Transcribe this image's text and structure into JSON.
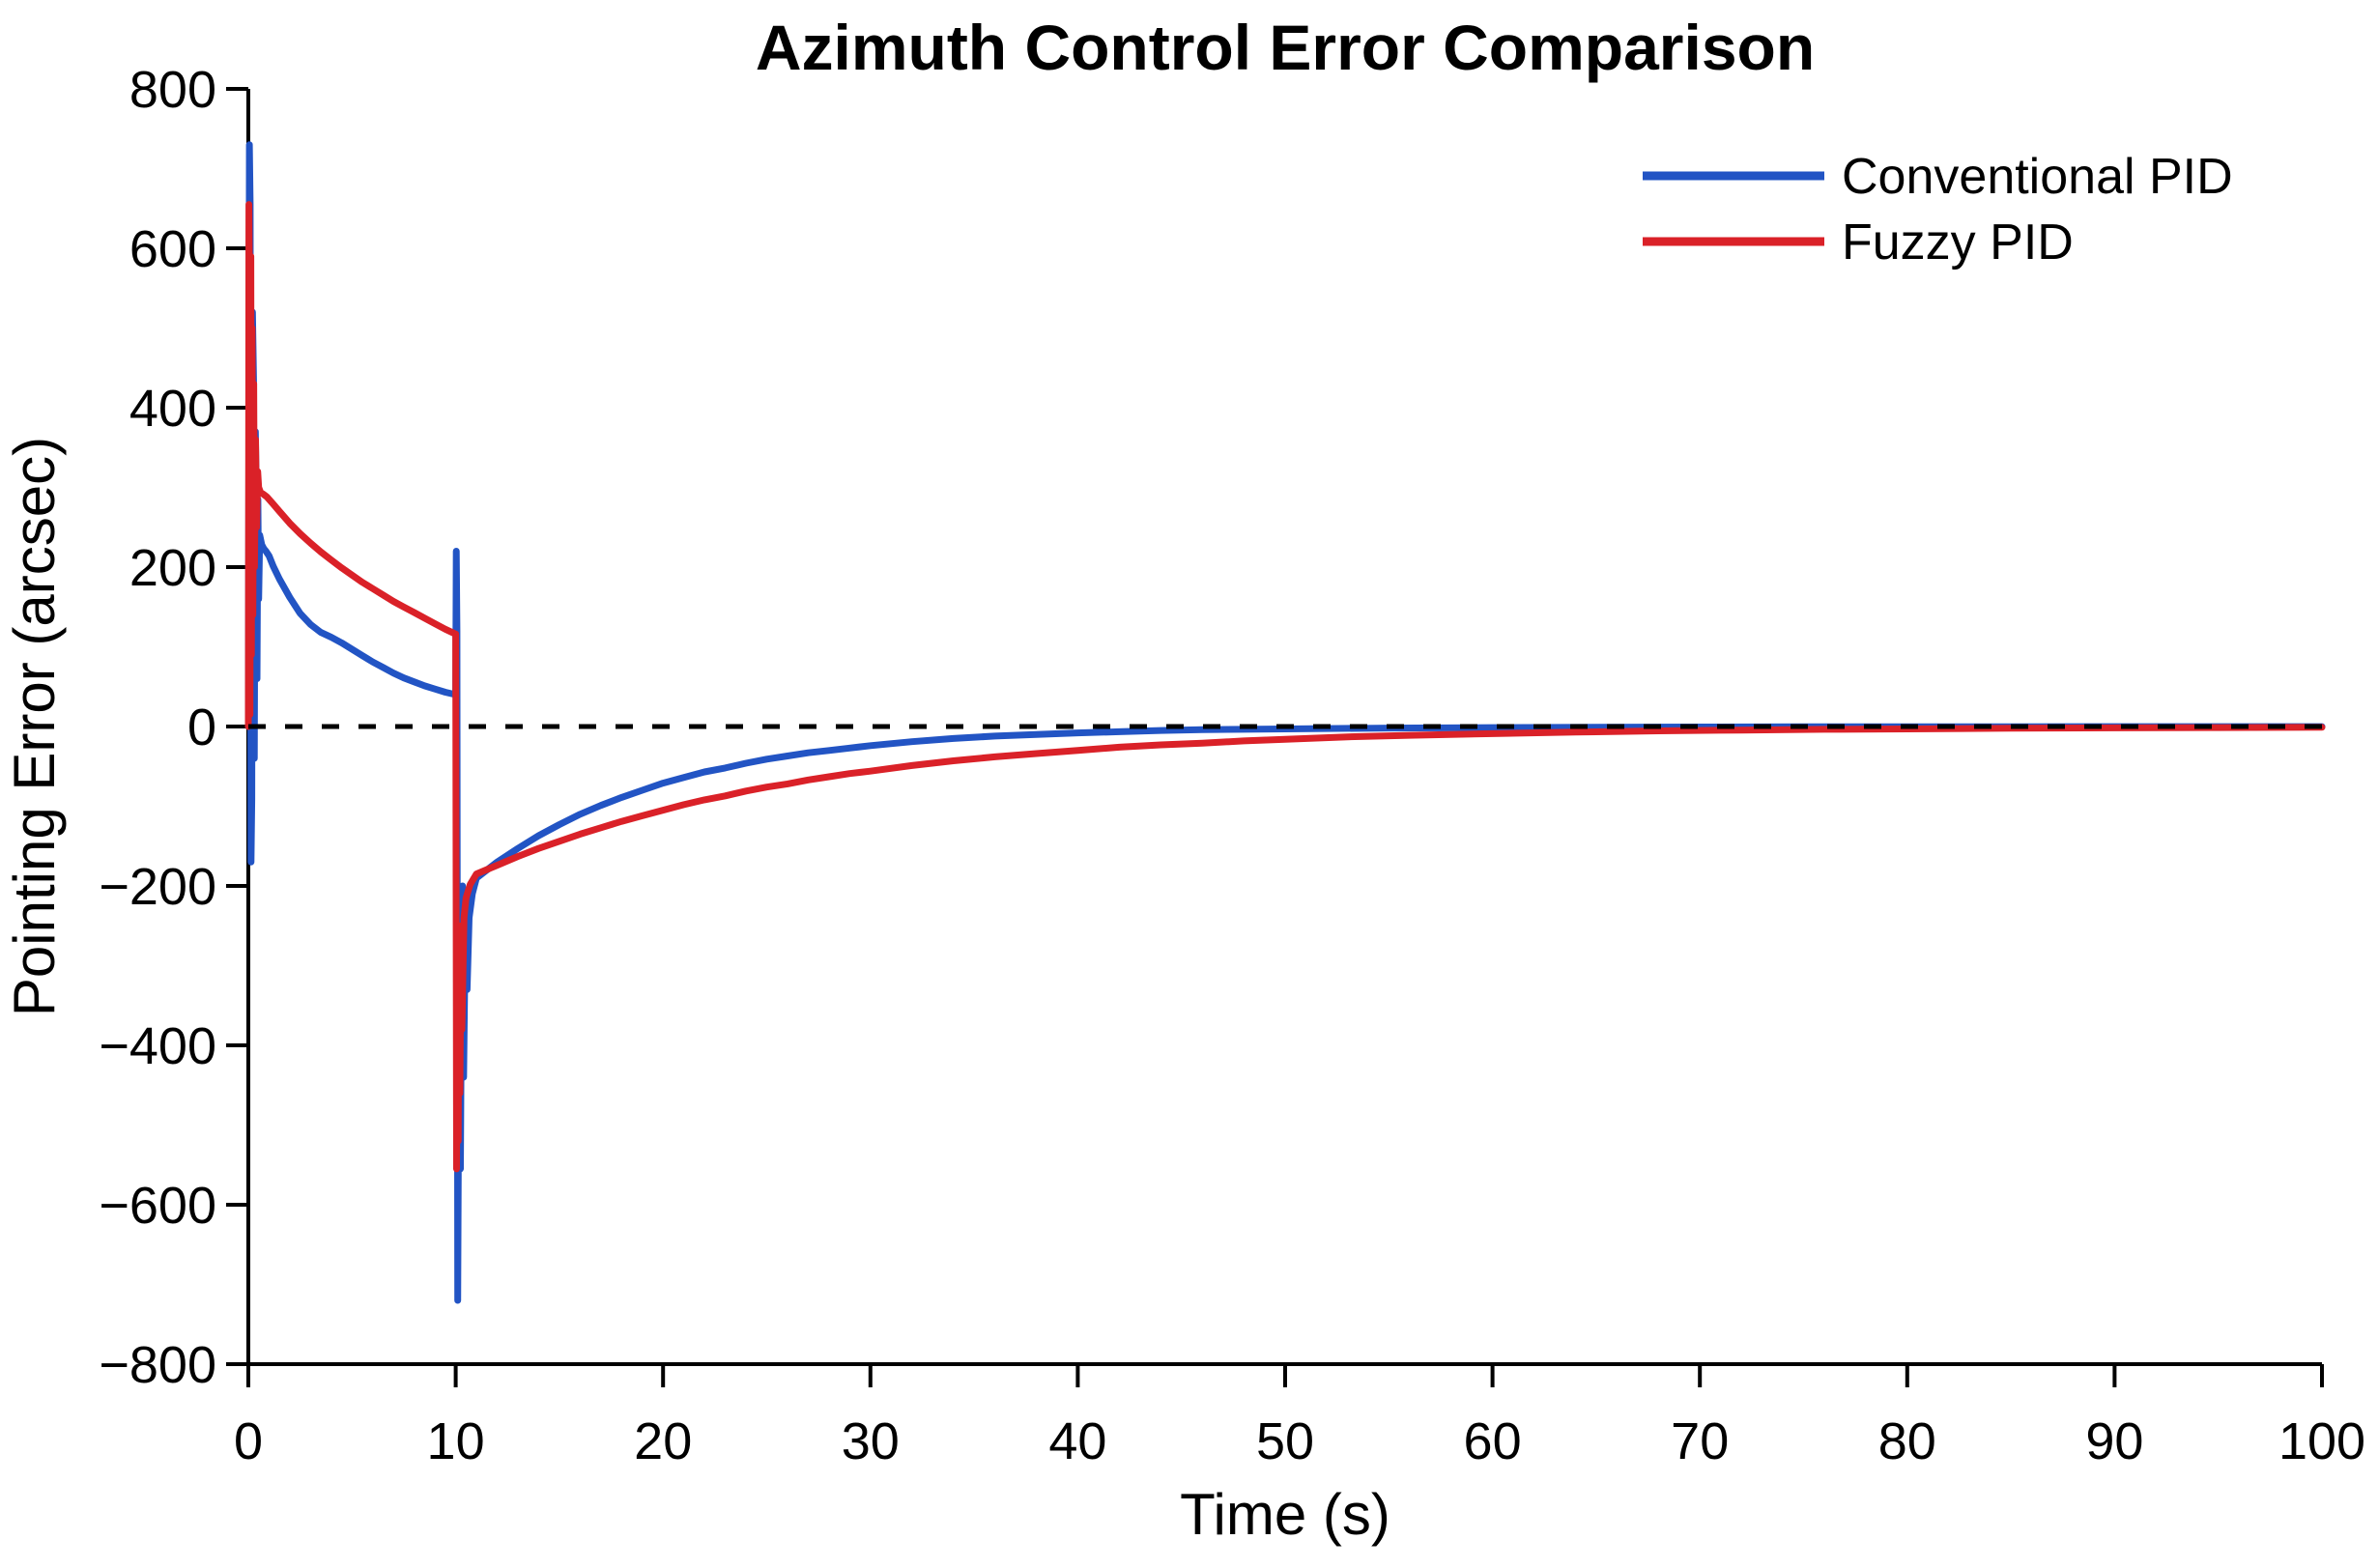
{
  "title": "Azimuth Control Error Comparison",
  "axes": {
    "xlabel": "Time (s)",
    "ylabel": "Pointing Error (arcsec)",
    "x_tick_labels": [
      "0",
      "10",
      "20",
      "30",
      "40",
      "50",
      "60",
      "70",
      "80",
      "90",
      "100"
    ],
    "y_tick_labels": [
      "800",
      "600",
      "400",
      "200",
      "0",
      "−200",
      "−400",
      "−600",
      "−800"
    ]
  },
  "legend": {
    "items": [
      {
        "label": "Conventional PID",
        "color": "#2254c4"
      },
      {
        "label": "Fuzzy PID",
        "color": "#da2128"
      }
    ]
  },
  "colors": {
    "conventional_pid": "#2254c4",
    "fuzzy_pid": "#da2128",
    "axis": "#000000",
    "zero_line": "#000000",
    "background": "#ffffff"
  },
  "chart_data": {
    "type": "line",
    "title": "Azimuth Control Error Comparison",
    "xlabel": "Time (s)",
    "ylabel": "Pointing Error (arcsec)",
    "xlim": [
      0,
      100
    ],
    "ylim": [
      -800,
      800
    ],
    "x_ticks": [
      0,
      10,
      20,
      30,
      40,
      50,
      60,
      70,
      80,
      90,
      100
    ],
    "y_ticks": [
      800,
      600,
      400,
      200,
      0,
      -200,
      -400,
      -600,
      -800
    ],
    "grid": false,
    "legend_position": "upper right",
    "zero_reference_line": {
      "y": 0,
      "style": "dashed",
      "color": "#000000"
    },
    "annotations": {
      "step_times_s": [
        0,
        10
      ],
      "conventional_pid_peak_overshoot_arcsec": 730,
      "conventional_pid_min_arcsec": -720,
      "fuzzy_pid_peak_overshoot_arcsec": 655,
      "fuzzy_pid_min_arcsec": -555
    },
    "series": [
      {
        "name": "Conventional PID",
        "color": "#2254c4",
        "points": [
          [
            0,
            0
          ],
          [
            0.05,
            730
          ],
          [
            0.09,
            655
          ],
          [
            0.13,
            -170
          ],
          [
            0.17,
            -90
          ],
          [
            0.2,
            520
          ],
          [
            0.25,
            435
          ],
          [
            0.29,
            -40
          ],
          [
            0.34,
            370
          ],
          [
            0.38,
            300
          ],
          [
            0.42,
            60
          ],
          [
            0.46,
            285
          ],
          [
            0.5,
            160
          ],
          [
            0.55,
            240
          ],
          [
            0.65,
            228
          ],
          [
            0.75,
            223
          ],
          [
            0.85,
            220
          ],
          [
            1,
            214
          ],
          [
            1.2,
            201
          ],
          [
            1.5,
            185
          ],
          [
            2,
            162
          ],
          [
            2.5,
            142
          ],
          [
            3,
            128
          ],
          [
            3.5,
            118
          ],
          [
            4,
            112
          ],
          [
            4.5,
            105
          ],
          [
            5,
            97
          ],
          [
            5.5,
            89
          ],
          [
            6,
            81
          ],
          [
            6.5,
            74
          ],
          [
            7,
            67
          ],
          [
            7.5,
            61
          ],
          [
            8,
            56
          ],
          [
            8.5,
            51
          ],
          [
            9,
            47
          ],
          [
            9.5,
            43
          ],
          [
            10,
            40
          ],
          [
            10.03,
            220
          ],
          [
            10.06,
            120
          ],
          [
            10.1,
            -720
          ],
          [
            10.14,
            -470
          ],
          [
            10.18,
            -240
          ],
          [
            10.23,
            -555
          ],
          [
            10.28,
            -320
          ],
          [
            10.33,
            -200
          ],
          [
            10.38,
            -440
          ],
          [
            10.45,
            -280
          ],
          [
            10.55,
            -330
          ],
          [
            10.65,
            -240
          ],
          [
            10.8,
            -210
          ],
          [
            11,
            -190
          ],
          [
            12,
            -170
          ],
          [
            13,
            -153
          ],
          [
            14,
            -137
          ],
          [
            15,
            -123
          ],
          [
            16,
            -110
          ],
          [
            17,
            -99
          ],
          [
            18,
            -89
          ],
          [
            19,
            -80
          ],
          [
            20,
            -71
          ],
          [
            21,
            -64
          ],
          [
            22,
            -57
          ],
          [
            23,
            -52
          ],
          [
            24,
            -46
          ],
          [
            25,
            -41
          ],
          [
            26,
            -37
          ],
          [
            27,
            -33
          ],
          [
            28,
            -30
          ],
          [
            29,
            -27
          ],
          [
            30,
            -24
          ],
          [
            32,
            -19
          ],
          [
            34,
            -15
          ],
          [
            36,
            -12
          ],
          [
            38,
            -10
          ],
          [
            40,
            -8
          ],
          [
            42,
            -6.5
          ],
          [
            44,
            -5
          ],
          [
            46,
            -4
          ],
          [
            48,
            -3.5
          ],
          [
            50,
            -3
          ],
          [
            55,
            -2
          ],
          [
            60,
            -1.3
          ],
          [
            65,
            -0.9
          ],
          [
            70,
            -0.6
          ],
          [
            75,
            -0.4
          ],
          [
            80,
            -0.3
          ],
          [
            85,
            -0.2
          ],
          [
            90,
            -0.1
          ],
          [
            95,
            -0.1
          ],
          [
            100,
            -0.1
          ]
        ]
      },
      {
        "name": "Fuzzy PID",
        "color": "#da2128",
        "points": [
          [
            0,
            0
          ],
          [
            0.03,
            655
          ],
          [
            0.06,
            540
          ],
          [
            0.08,
            15
          ],
          [
            0.12,
            590
          ],
          [
            0.15,
            90
          ],
          [
            0.18,
            500
          ],
          [
            0.22,
            140
          ],
          [
            0.26,
            430
          ],
          [
            0.3,
            200
          ],
          [
            0.35,
            360
          ],
          [
            0.4,
            250
          ],
          [
            0.45,
            320
          ],
          [
            0.5,
            300
          ],
          [
            0.6,
            293
          ],
          [
            0.7,
            292
          ],
          [
            0.8,
            290
          ],
          [
            0.9,
            288
          ],
          [
            1,
            285
          ],
          [
            1.2,
            279
          ],
          [
            1.5,
            270
          ],
          [
            2,
            255
          ],
          [
            2.5,
            242
          ],
          [
            3,
            230
          ],
          [
            3.5,
            219
          ],
          [
            4,
            209
          ],
          [
            4.5,
            199
          ],
          [
            5,
            190
          ],
          [
            5.5,
            181
          ],
          [
            6,
            173
          ],
          [
            6.5,
            165
          ],
          [
            7,
            157
          ],
          [
            7.5,
            150
          ],
          [
            8,
            143
          ],
          [
            8.5,
            136
          ],
          [
            9,
            129
          ],
          [
            9.5,
            122
          ],
          [
            10,
            116
          ],
          [
            10.04,
            -555
          ],
          [
            10.08,
            -300
          ],
          [
            10.12,
            -520
          ],
          [
            10.16,
            -250
          ],
          [
            10.2,
            -460
          ],
          [
            10.25,
            -290
          ],
          [
            10.3,
            -380
          ],
          [
            10.4,
            -240
          ],
          [
            10.5,
            -215
          ],
          [
            10.7,
            -198
          ],
          [
            11,
            -185
          ],
          [
            12,
            -174
          ],
          [
            13,
            -163
          ],
          [
            14,
            -153
          ],
          [
            15,
            -144
          ],
          [
            16,
            -135
          ],
          [
            17,
            -127
          ],
          [
            18,
            -119
          ],
          [
            19,
            -112
          ],
          [
            20,
            -105
          ],
          [
            21,
            -98
          ],
          [
            22,
            -92
          ],
          [
            23,
            -87
          ],
          [
            24,
            -81
          ],
          [
            25,
            -76
          ],
          [
            26,
            -72
          ],
          [
            27,
            -67
          ],
          [
            28,
            -63
          ],
          [
            29,
            -59
          ],
          [
            30,
            -56
          ],
          [
            32,
            -49
          ],
          [
            34,
            -43
          ],
          [
            36,
            -38
          ],
          [
            38,
            -34
          ],
          [
            40,
            -30
          ],
          [
            42,
            -26
          ],
          [
            44,
            -23
          ],
          [
            46,
            -21
          ],
          [
            48,
            -18
          ],
          [
            50,
            -16
          ],
          [
            53,
            -13
          ],
          [
            56,
            -11
          ],
          [
            60,
            -9
          ],
          [
            64,
            -7
          ],
          [
            68,
            -5.5
          ],
          [
            72,
            -4.5
          ],
          [
            76,
            -3.5
          ],
          [
            80,
            -3
          ],
          [
            85,
            -2.2
          ],
          [
            90,
            -1.7
          ],
          [
            95,
            -1.3
          ],
          [
            100,
            -1
          ]
        ]
      }
    ]
  }
}
